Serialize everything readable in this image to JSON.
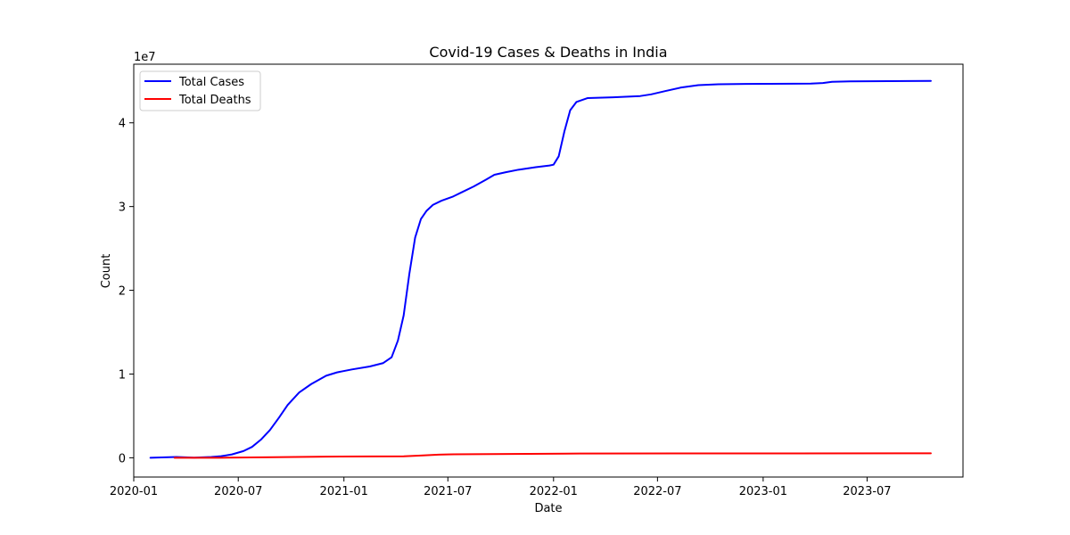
{
  "chart_data": {
    "type": "line",
    "title": "Covid-19 Cases & Deaths in India",
    "xlabel": "Date",
    "ylabel": "Count",
    "y_offset_label": "1e7",
    "y_scale": 10000000,
    "xlim": [
      "2020-01-01",
      "2023-12-15"
    ],
    "ylim": [
      -2300000,
      47000000
    ],
    "x_ticks": [
      "2020-01-01",
      "2020-07-01",
      "2021-01-01",
      "2021-07-01",
      "2022-01-01",
      "2022-07-01",
      "2023-01-01",
      "2023-07-01"
    ],
    "x_tick_labels": [
      "2020-01",
      "2020-07",
      "2021-01",
      "2021-07",
      "2022-01",
      "2022-07",
      "2023-01",
      "2023-07"
    ],
    "y_ticks": [
      0,
      10000000,
      20000000,
      30000000,
      40000000
    ],
    "y_tick_labels": [
      "0",
      "1",
      "2",
      "3",
      "4"
    ],
    "grid": false,
    "legend_position": "upper-left",
    "series": [
      {
        "name": "Total Cases",
        "color": "#0000ff",
        "x": [
          "2020-01-30",
          "2020-03-15",
          "2020-04-15",
          "2020-05-15",
          "2020-06-01",
          "2020-06-20",
          "2020-07-10",
          "2020-07-25",
          "2020-08-10",
          "2020-08-25",
          "2020-09-10",
          "2020-09-25",
          "2020-10-15",
          "2020-11-05",
          "2020-12-01",
          "2020-12-20",
          "2021-01-15",
          "2021-02-15",
          "2021-03-10",
          "2021-03-25",
          "2021-04-05",
          "2021-04-15",
          "2021-04-25",
          "2021-05-05",
          "2021-05-15",
          "2021-05-25",
          "2021-06-05",
          "2021-06-20",
          "2021-07-10",
          "2021-07-25",
          "2021-08-15",
          "2021-09-05",
          "2021-09-20",
          "2021-10-10",
          "2021-11-01",
          "2021-12-01",
          "2021-12-25",
          "2022-01-01",
          "2022-01-10",
          "2022-01-20",
          "2022-01-30",
          "2022-02-10",
          "2022-03-01",
          "2022-04-15",
          "2022-06-01",
          "2022-06-20",
          "2022-07-15",
          "2022-08-10",
          "2022-09-10",
          "2022-10-15",
          "2022-12-01",
          "2023-03-25",
          "2023-04-15",
          "2023-05-01",
          "2023-06-01",
          "2023-10-20"
        ],
        "values": [
          0,
          100000,
          12000,
          100000,
          190000,
          400000,
          800000,
          1300000,
          2200000,
          3300000,
          4800000,
          6300000,
          7800000,
          8800000,
          9800000,
          10200000,
          10550000,
          10900000,
          11300000,
          12000000,
          14000000,
          17000000,
          22000000,
          26300000,
          28500000,
          29500000,
          30200000,
          30700000,
          31200000,
          31700000,
          32400000,
          33200000,
          33800000,
          34100000,
          34400000,
          34700000,
          34900000,
          35000000,
          36000000,
          39000000,
          41500000,
          42500000,
          42950000,
          43050000,
          43200000,
          43400000,
          43800000,
          44200000,
          44500000,
          44600000,
          44650000,
          44680000,
          44750000,
          44900000,
          44950000,
          45000000
        ]
      },
      {
        "name": "Total Deaths",
        "color": "#ff0000",
        "x": [
          "2020-03-12",
          "2020-06-01",
          "2020-09-01",
          "2020-12-01",
          "2021-04-15",
          "2021-05-15",
          "2021-06-15",
          "2021-07-01",
          "2022-02-15",
          "2023-10-20"
        ],
        "values": [
          0,
          5000,
          70000,
          140000,
          175000,
          270000,
          380000,
          405000,
          510000,
          532000
        ]
      }
    ]
  }
}
